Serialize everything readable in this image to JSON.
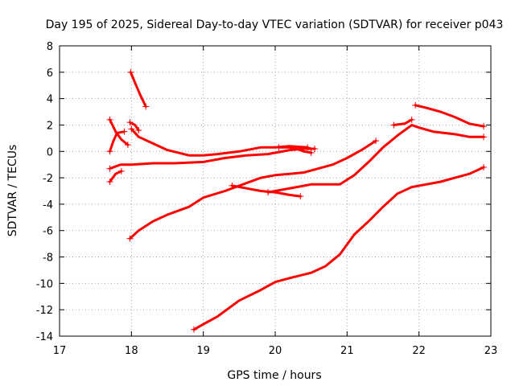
{
  "chart_data": {
    "type": "scatter",
    "title": "Day 195 of 2025, Sidereal Day-to-day VTEC variation (SDTVAR) for receiver p043",
    "xlabel": "GPS time / hours",
    "ylabel": "SDTVAR / TECUs",
    "xlim": [
      17,
      23
    ],
    "ylim": [
      -14,
      8
    ],
    "xticks": [
      17,
      18,
      19,
      20,
      21,
      22,
      23
    ],
    "yticks": [
      -14,
      -12,
      -10,
      -8,
      -6,
      -4,
      -2,
      0,
      2,
      4,
      6,
      8
    ],
    "grid": true,
    "legend": "none",
    "color": "#ff0000",
    "series": [
      {
        "points": [
          [
            17.99,
            6.0
          ],
          [
            18.05,
            5.2
          ],
          [
            18.12,
            4.3
          ],
          [
            18.2,
            3.4
          ]
        ]
      },
      {
        "points": [
          [
            17.7,
            2.4
          ],
          [
            17.78,
            1.5
          ],
          [
            17.86,
            0.9
          ],
          [
            17.95,
            0.5
          ]
        ]
      },
      {
        "points": [
          [
            17.7,
            0.0
          ],
          [
            17.75,
            0.8
          ],
          [
            17.8,
            1.4
          ],
          [
            17.9,
            1.5
          ]
        ]
      },
      {
        "points": [
          [
            17.98,
            2.2
          ],
          [
            18.05,
            2.0
          ],
          [
            18.1,
            1.6
          ]
        ]
      },
      {
        "points": [
          [
            17.7,
            -2.3
          ],
          [
            17.78,
            -1.7
          ],
          [
            17.86,
            -1.5
          ]
        ]
      },
      {
        "points": [
          [
            18.0,
            1.7
          ],
          [
            18.1,
            1.1
          ],
          [
            18.3,
            0.6
          ],
          [
            18.5,
            0.1
          ],
          [
            18.8,
            -0.3
          ],
          [
            19.0,
            -0.3
          ],
          [
            19.2,
            -0.2
          ],
          [
            19.5,
            0.0
          ],
          [
            19.8,
            0.3
          ],
          [
            20.0,
            0.3
          ],
          [
            20.2,
            0.4
          ],
          [
            20.45,
            0.3
          ]
        ]
      },
      {
        "points": [
          [
            20.05,
            0.3
          ],
          [
            20.2,
            0.3
          ],
          [
            20.3,
            0.2
          ],
          [
            20.4,
            0.0
          ],
          [
            20.5,
            -0.1
          ]
        ]
      },
      {
        "points": [
          [
            17.7,
            -1.3
          ],
          [
            17.85,
            -1.0
          ],
          [
            18.0,
            -1.0
          ],
          [
            18.3,
            -0.9
          ],
          [
            18.6,
            -0.9
          ],
          [
            19.0,
            -0.8
          ],
          [
            19.3,
            -0.5
          ],
          [
            19.6,
            -0.3
          ],
          [
            19.9,
            -0.2
          ],
          [
            20.2,
            0.1
          ],
          [
            20.4,
            0.2
          ],
          [
            20.55,
            0.2
          ]
        ]
      },
      {
        "points": [
          [
            17.98,
            -6.6
          ],
          [
            18.1,
            -6.0
          ],
          [
            18.3,
            -5.3
          ],
          [
            18.5,
            -4.8
          ],
          [
            18.8,
            -4.2
          ],
          [
            19.0,
            -3.5
          ],
          [
            19.3,
            -3.0
          ],
          [
            19.55,
            -2.5
          ],
          [
            19.8,
            -2.0
          ],
          [
            20.0,
            -1.8
          ],
          [
            20.2,
            -1.7
          ],
          [
            20.4,
            -1.6
          ],
          [
            20.6,
            -1.3
          ],
          [
            20.8,
            -1.0
          ],
          [
            21.0,
            -0.5
          ],
          [
            21.2,
            0.1
          ],
          [
            21.4,
            0.8
          ]
        ]
      },
      {
        "points": [
          [
            19.4,
            -2.6
          ],
          [
            19.6,
            -2.8
          ],
          [
            19.8,
            -3.0
          ],
          [
            20.0,
            -3.1
          ],
          [
            20.2,
            -3.3
          ],
          [
            20.35,
            -3.4
          ]
        ]
      },
      {
        "points": [
          [
            19.9,
            -3.1
          ],
          [
            20.1,
            -2.9
          ],
          [
            20.3,
            -2.7
          ],
          [
            20.5,
            -2.5
          ],
          [
            20.7,
            -2.5
          ],
          [
            20.9,
            -2.5
          ],
          [
            21.1,
            -1.8
          ],
          [
            21.3,
            -0.8
          ],
          [
            21.5,
            0.3
          ],
          [
            21.7,
            1.2
          ],
          [
            21.9,
            2.0
          ],
          [
            22.0,
            1.8
          ],
          [
            22.2,
            1.5
          ],
          [
            22.5,
            1.3
          ],
          [
            22.7,
            1.1
          ],
          [
            22.9,
            1.1
          ]
        ]
      },
      {
        "points": [
          [
            21.65,
            2.0
          ],
          [
            21.8,
            2.1
          ],
          [
            21.9,
            2.4
          ]
        ]
      },
      {
        "points": [
          [
            21.95,
            3.5
          ],
          [
            22.1,
            3.3
          ],
          [
            22.3,
            3.0
          ],
          [
            22.5,
            2.6
          ],
          [
            22.7,
            2.1
          ],
          [
            22.9,
            1.9
          ]
        ]
      },
      {
        "points": [
          [
            18.87,
            -13.5
          ],
          [
            19.0,
            -13.1
          ],
          [
            19.2,
            -12.5
          ],
          [
            19.5,
            -11.3
          ],
          [
            19.8,
            -10.5
          ],
          [
            20.0,
            -9.9
          ],
          [
            20.2,
            -9.6
          ],
          [
            20.5,
            -9.2
          ],
          [
            20.7,
            -8.7
          ],
          [
            20.9,
            -7.8
          ],
          [
            21.1,
            -6.3
          ],
          [
            21.3,
            -5.3
          ],
          [
            21.5,
            -4.2
          ],
          [
            21.7,
            -3.2
          ],
          [
            21.9,
            -2.7
          ],
          [
            22.1,
            -2.5
          ],
          [
            22.3,
            -2.3
          ],
          [
            22.5,
            -2.0
          ],
          [
            22.7,
            -1.7
          ],
          [
            22.9,
            -1.2
          ]
        ]
      }
    ]
  }
}
